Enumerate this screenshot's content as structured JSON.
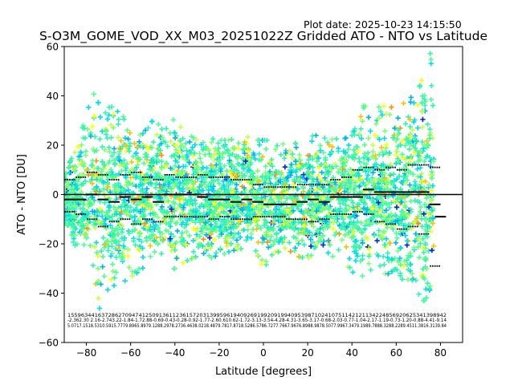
{
  "plot_date": "Plot date: 2025-10-23 14:15:50",
  "chart_data": {
    "type": "scatter",
    "title": "S-O3M_GOME_VOD_XX_M03_20251022Z Gridded ATO - NTO vs Latitude",
    "xlabel": "Latitude [degrees]",
    "ylabel": "ATO - NTO [DU]",
    "xlim": [
      -90,
      90
    ],
    "ylim": [
      -60,
      60
    ],
    "xticks": [
      -80,
      -60,
      -40,
      -20,
      0,
      20,
      40,
      60,
      80
    ],
    "yticks": [
      -60,
      -40,
      -20,
      0,
      20,
      40,
      60
    ],
    "grid": false,
    "point_colors": [
      "#0022dd",
      "#00b0f0",
      "#00dcf0",
      "#30f5b0",
      "#50ff90",
      "#7dff70",
      "#c8ff40",
      "#ffff00",
      "#ffc000",
      "#ff9000"
    ],
    "scatter_envelope": {
      "latitudes": [
        -90,
        -85,
        -80,
        -77,
        -75,
        -72,
        -70,
        -65,
        -60,
        -55,
        -50,
        -45,
        -40,
        -35,
        -30,
        -25,
        -20,
        -15,
        -10,
        -5,
        0,
        5,
        10,
        15,
        20,
        25,
        30,
        35,
        40,
        43,
        45,
        50,
        55,
        60,
        65,
        70,
        72,
        75,
        77
      ],
      "upper": [
        8,
        18,
        32,
        42,
        38,
        32,
        38,
        35,
        25,
        24,
        30,
        32,
        30,
        25,
        22,
        23,
        22,
        22,
        25,
        22,
        22,
        22,
        20,
        21,
        22,
        26,
        24,
        22,
        24,
        30,
        36,
        35,
        36,
        35,
        38,
        42,
        48,
        60,
        45
      ],
      "lower": [
        -12,
        -22,
        -25,
        -30,
        -48,
        -42,
        -38,
        -36,
        -34,
        -30,
        -28,
        -32,
        -30,
        -27,
        -25,
        -26,
        -25,
        -23,
        -22,
        -20,
        -30,
        -24,
        -22,
        -25,
        -26,
        -22,
        -24,
        -28,
        -30,
        -40,
        -32,
        -30,
        -33,
        -30,
        -38,
        -40,
        -44,
        -40,
        -20
      ]
    },
    "mean_line": {
      "latitudes": [
        -90,
        -85,
        -80,
        -75,
        -70,
        -65,
        -60,
        -55,
        -50,
        -45,
        -40,
        -35,
        -30,
        -25,
        -20,
        -15,
        -10,
        -5,
        0,
        5,
        10,
        15,
        20,
        25,
        30,
        35,
        40,
        45,
        50,
        55,
        60,
        65,
        70,
        75,
        80
      ],
      "values": [
        -2,
        -2,
        0,
        -2,
        -3,
        -1,
        -2,
        -1,
        -3,
        0,
        0,
        0,
        -1,
        -2,
        -2,
        -3,
        -2,
        -3,
        -4,
        -4,
        -4,
        -3,
        -2,
        -3,
        -1,
        -1,
        -1,
        2,
        1,
        1,
        1,
        1,
        1,
        -4,
        -9
      ]
    },
    "upper_sd": {
      "latitudes": [
        -90,
        -85,
        -80,
        -75,
        -70,
        -65,
        -60,
        -55,
        -50,
        -45,
        -40,
        -35,
        -30,
        -25,
        -20,
        -15,
        -10,
        -5,
        0,
        5,
        10,
        15,
        20,
        25,
        30,
        35,
        40,
        45,
        50,
        55,
        60,
        65,
        70,
        75,
        80
      ],
      "values": [
        6,
        7,
        9,
        8,
        6,
        8,
        9,
        7,
        6,
        8,
        7,
        7,
        8,
        7,
        7,
        6,
        6,
        4,
        3,
        3,
        3,
        4,
        4,
        4,
        6,
        7,
        10,
        11,
        10,
        11,
        10,
        12,
        12,
        11,
        11
      ]
    },
    "lower_sd": {
      "latitudes": [
        -90,
        -85,
        -80,
        -75,
        -70,
        -65,
        -60,
        -55,
        -50,
        -45,
        -40,
        -35,
        -30,
        -25,
        -20,
        -15,
        -10,
        -5,
        0,
        5,
        10,
        15,
        20,
        25,
        30,
        35,
        40,
        45,
        50,
        55,
        60,
        65,
        70,
        75,
        80
      ],
      "values": [
        -7,
        -8,
        -10,
        -13,
        -11,
        -10,
        -12,
        -10,
        -11,
        -9,
        -9,
        -9,
        -9,
        -10,
        -9,
        -10,
        -10,
        -9,
        -9,
        -9,
        -10,
        -10,
        -11,
        -10,
        -8,
        -8,
        -7,
        -8,
        -11,
        -12,
        -14,
        -13,
        -16,
        -29,
        -29
      ]
    },
    "counts": {
      "rows": [
        "1559634416372862709474125091361123615720313995961940926919920919940953987102410751142121134224856920625341398942",
        "-2.362.30 2.16-2.743.22-1.84-1.72.88-0.69-0.43-0.28-0.92-1.77-2.60.610.62-1.72-3.13-3.54-4.28-4.31-3.65-3.17-0.68-2.03-0.77-1.04-2.17-1.19-0.73-1.20-0.88-4.41-9.14",
        "5.0717.1518.5310.5915.7779.8965.8979.1288.2978.2736.4638.0218.4879.7817.8718.5286.5786.7277.7667.9676.8988.9878.5077.9967.3479.1989.7888.3288.2289.4511.3816.3139.84"
      ]
    }
  }
}
